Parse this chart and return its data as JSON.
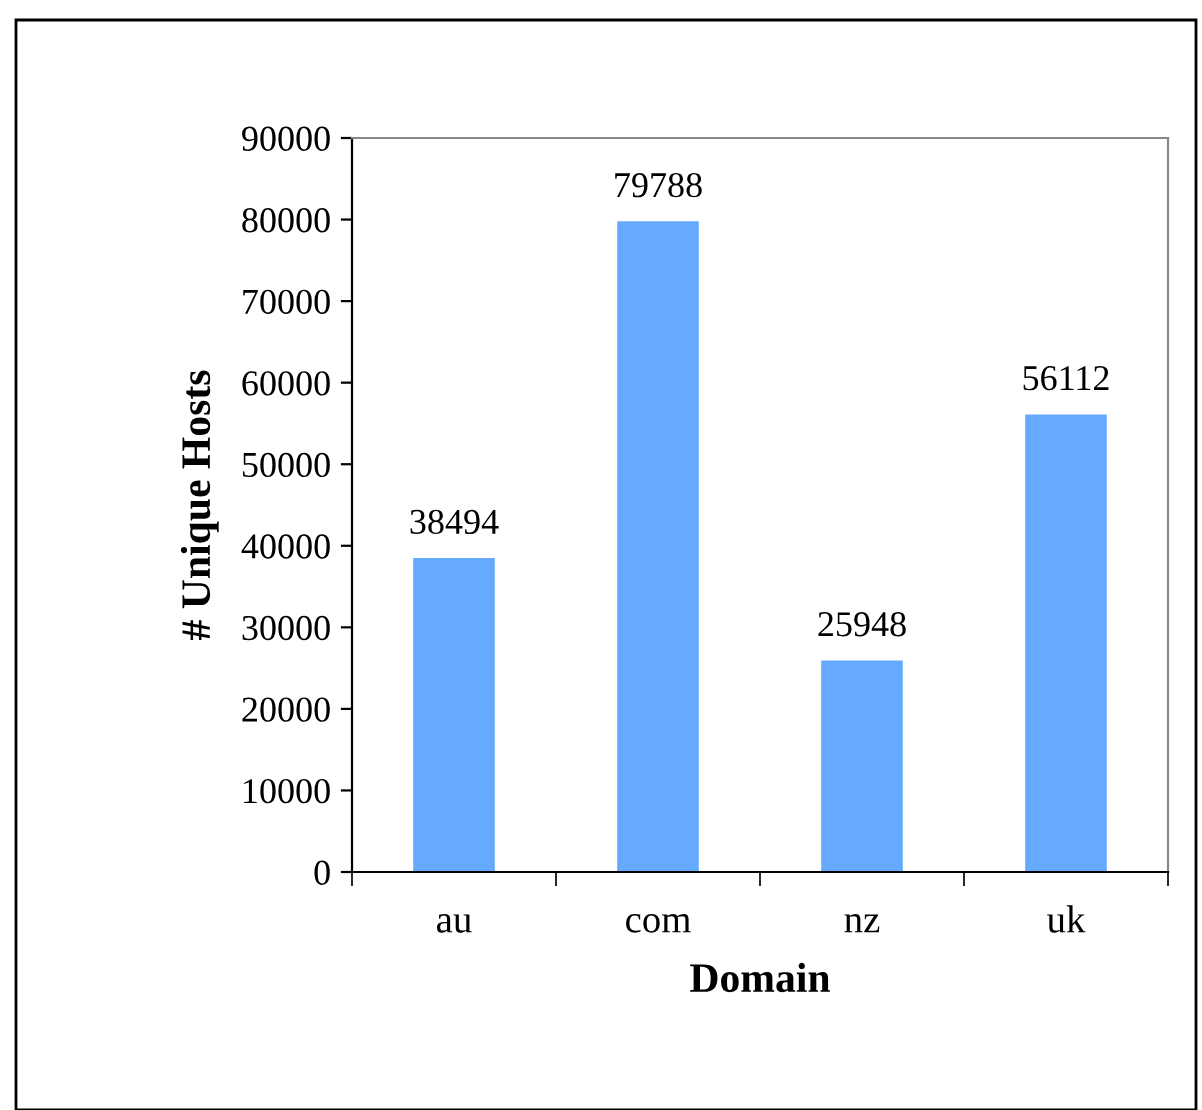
{
  "chart_data": {
    "type": "bar",
    "xlabel": "Domain",
    "ylabel": "# Unique Hosts",
    "categories": [
      "au",
      "com",
      "nz",
      "uk"
    ],
    "values": [
      38494,
      79788,
      25948,
      56112
    ],
    "color": "#66aaff",
    "ylim": [
      0,
      90000
    ],
    "yticks": [
      0,
      10000,
      20000,
      30000,
      40000,
      50000,
      60000,
      70000,
      80000,
      90000
    ],
    "data_labels": true,
    "grid": false,
    "legend": false
  }
}
